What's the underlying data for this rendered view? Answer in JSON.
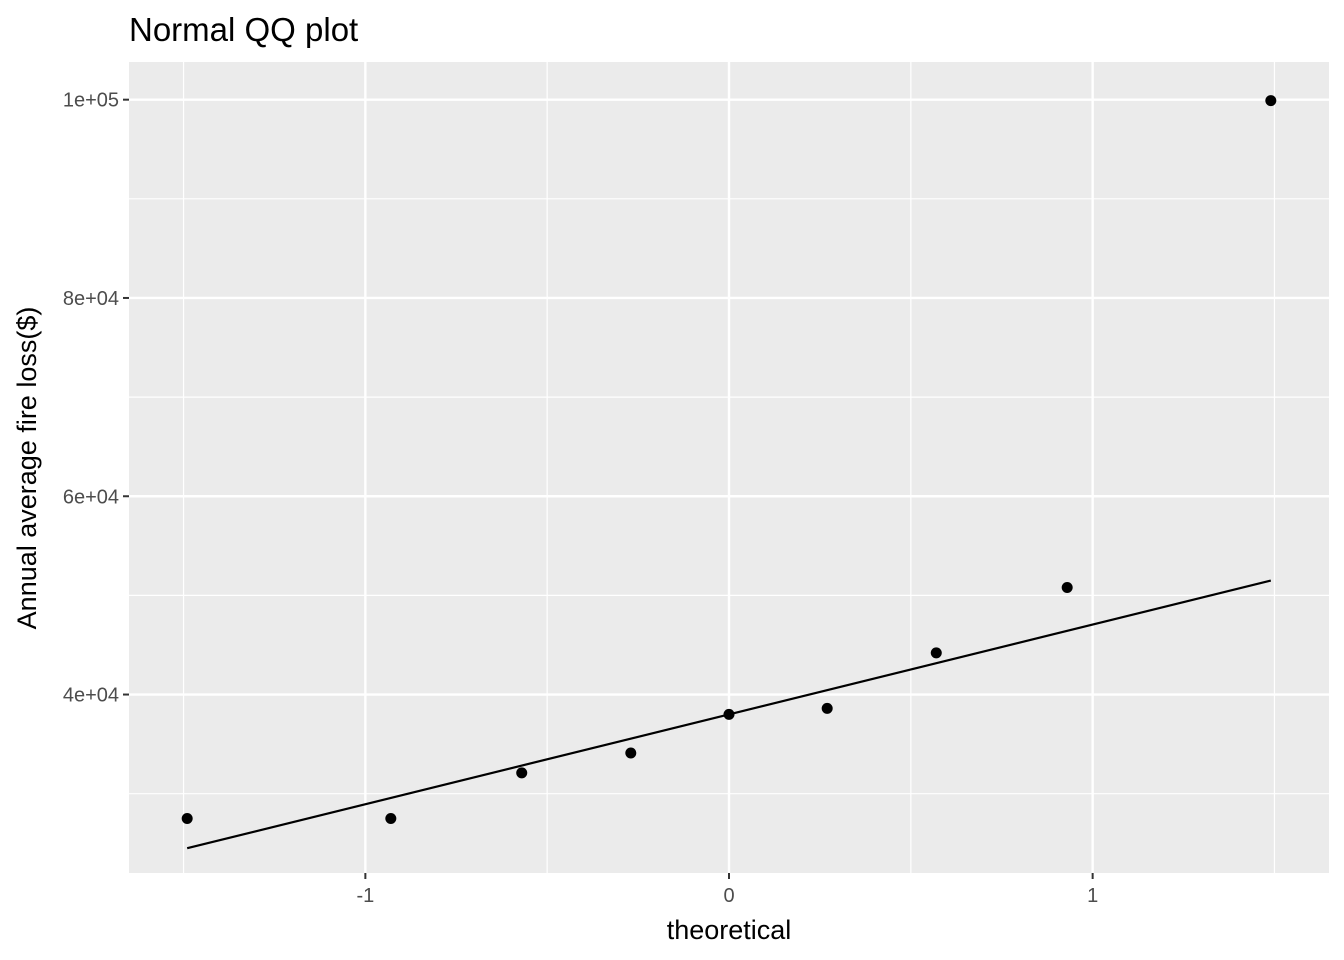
{
  "chart_data": {
    "type": "scatter",
    "title": "Normal QQ plot",
    "xlabel": "theoretical",
    "ylabel": "Annual average fire loss($)",
    "xlim": [
      -1.65,
      1.65
    ],
    "ylim": [
      22000,
      103800
    ],
    "x_ticks": [
      {
        "value": -1,
        "label": "-1"
      },
      {
        "value": 0,
        "label": "0"
      },
      {
        "value": 1,
        "label": "1"
      }
    ],
    "x_minor": [
      -1.5,
      -0.5,
      0.5,
      1.5
    ],
    "y_ticks": [
      {
        "value": 40000,
        "label": "4e+04"
      },
      {
        "value": 60000,
        "label": "6e+04"
      },
      {
        "value": 80000,
        "label": "8e+04"
      },
      {
        "value": 100000,
        "label": "1e+05"
      }
    ],
    "y_minor": [
      30000,
      50000,
      70000,
      90000
    ],
    "grid": true,
    "points": [
      {
        "x": -1.49,
        "y": 27500
      },
      {
        "x": -0.93,
        "y": 27500
      },
      {
        "x": -0.57,
        "y": 32100
      },
      {
        "x": -0.27,
        "y": 34100
      },
      {
        "x": 0.0,
        "y": 38000
      },
      {
        "x": 0.27,
        "y": 38600
      },
      {
        "x": 0.57,
        "y": 44200
      },
      {
        "x": 0.93,
        "y": 50800
      },
      {
        "x": 1.49,
        "y": 99900
      }
    ],
    "reference_line": {
      "x": [
        -1.49,
        1.49
      ],
      "y": [
        24500,
        51500
      ]
    },
    "colors": {
      "panel": "#ebebeb",
      "grid": "#ffffff",
      "point": "#000000",
      "line": "#000000"
    }
  }
}
